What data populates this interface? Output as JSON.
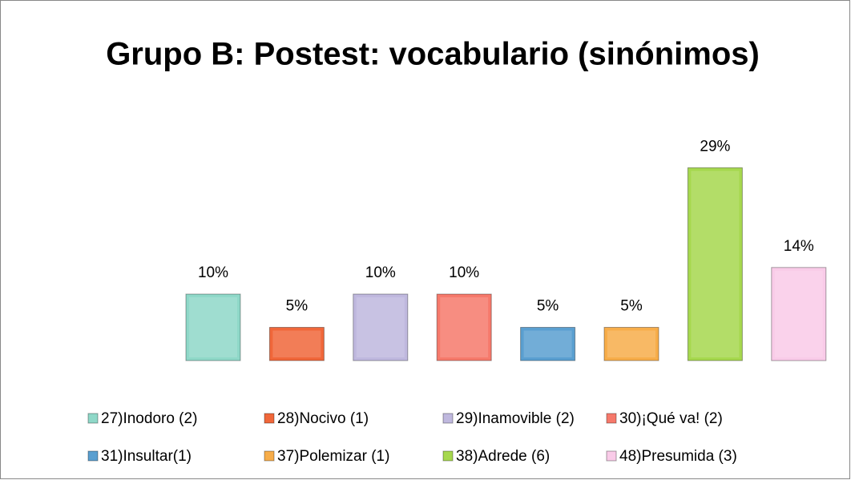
{
  "chart_data": {
    "type": "bar",
    "title": "Grupo B: Postest: vocabulario (sinónimos)",
    "series": [
      {
        "name": "27)Inodoro (2)",
        "color": "#8fd8c8",
        "values": [
          10
        ],
        "value_labels": [
          "10%"
        ]
      },
      {
        "name": "28)Nocivo (1)",
        "color": "#f0673a",
        "values": [
          5
        ],
        "value_labels": [
          "5%"
        ]
      },
      {
        "name": "29)Inamovible (2)",
        "color": "#bfb8de",
        "values": [
          10
        ],
        "value_labels": [
          "10%"
        ]
      },
      {
        "name": "30)¡Qué va! (2)",
        "color": "#f6796b",
        "values": [
          10
        ],
        "value_labels": [
          "10%"
        ]
      },
      {
        "name": "31)Insultar(1)",
        "color": "#5a9fd0",
        "values": [
          5
        ],
        "value_labels": [
          "5%"
        ]
      },
      {
        "name": "37)Polemizar (1)",
        "color": "#f7ad4a",
        "values": [
          5
        ],
        "value_labels": [
          "5%"
        ]
      },
      {
        "name": "38)Adrede (6)",
        "color": "#a6d84e",
        "values": [
          29
        ],
        "value_labels": [
          "29%"
        ]
      },
      {
        "name": "48)Presumida (3)",
        "color": "#f9cbe8",
        "values": [
          14
        ],
        "value_labels": [
          "14%"
        ]
      }
    ]
  }
}
